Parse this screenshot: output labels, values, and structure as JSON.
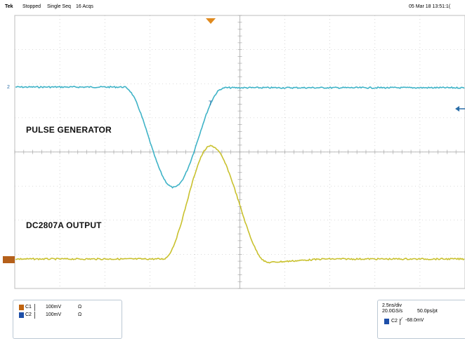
{
  "header": {
    "brand": "Tek",
    "run_state": "Stopped",
    "acq_mode": "Single Seq",
    "acqs": "16 Acqs",
    "datetime": "05 Mar 18 13:51:1("
  },
  "ch2_marker": "2",
  "traces": {
    "ch2_label": "PULSE GENERATOR",
    "ch1_label": "DC2807A OUTPUT"
  },
  "channels": [
    {
      "name": "C1",
      "scale": "100mV",
      "impedance": "Ω",
      "color": "#c0640f"
    },
    {
      "name": "C2",
      "scale": "100mV",
      "impedance": "Ω",
      "color": "#1e4fa8"
    }
  ],
  "timebase": {
    "scale": "2.5ns/div",
    "sample_rate": "20.0GS/s",
    "resolution": "50.0ps/pt",
    "trigger_source": "C2",
    "trigger_slope": "⁄",
    "trigger_level": "-68.0mV"
  },
  "colors": {
    "ch1_trace": "#c9c12e",
    "ch2_trace": "#3fb3c7",
    "grid": "#b8b8b8",
    "trigger_marker": "#e08a1e"
  }
}
